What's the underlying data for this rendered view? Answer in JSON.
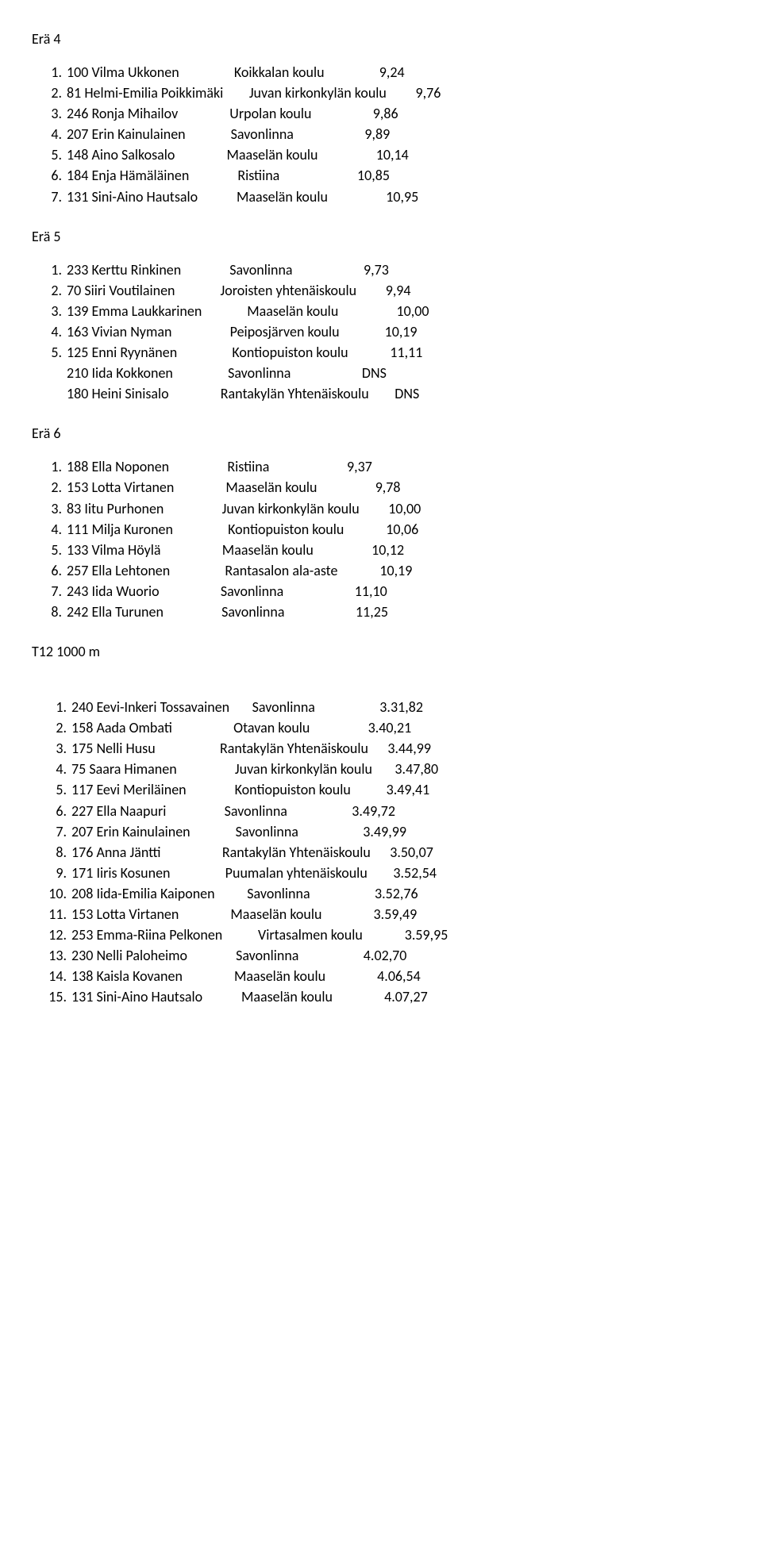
{
  "heats": [
    {
      "title": "Erä 4",
      "rows": [
        {
          "rank": "1.",
          "bib": "100",
          "name": "Vilma Ukkonen",
          "school": "Koikkalan koulu",
          "result": "9,24"
        },
        {
          "rank": "2.",
          "bib": "81",
          "name": "Helmi-Emilia Poikkimäki",
          "school": "Juvan kirkonkylän koulu",
          "result": "9,76"
        },
        {
          "rank": "3.",
          "bib": "246",
          "name": "Ronja Mihailov",
          "school": "Urpolan koulu",
          "result": "9,86"
        },
        {
          "rank": "4.",
          "bib": "207",
          "name": "Erin Kainulainen",
          "school": "Savonlinna",
          "result": "9,89"
        },
        {
          "rank": "5.",
          "bib": "148",
          "name": "Aino Salkosalo",
          "school": "Maaselän koulu",
          "result": "10,14"
        },
        {
          "rank": "6.",
          "bib": "184",
          "name": "Enja Hämäläinen",
          "school": "Ristiina",
          "result": "10,85"
        },
        {
          "rank": "7.",
          "bib": "131",
          "name": "Sini-Aino Hautsalo",
          "school": "Maaselän koulu",
          "result": "10,95"
        }
      ]
    },
    {
      "title": "Erä 5",
      "rows": [
        {
          "rank": "1.",
          "bib": "233",
          "name": "Kerttu Rinkinen",
          "school": "Savonlinna",
          "result": "9,73"
        },
        {
          "rank": "2.",
          "bib": "70",
          "name": "Siiri Voutilainen",
          "school": "Joroisten yhtenäiskoulu",
          "result": "9,94"
        },
        {
          "rank": "3.",
          "bib": "139",
          "name": "Emma Laukkarinen",
          "school": "Maaselän koulu",
          "result": "10,00"
        },
        {
          "rank": "4.",
          "bib": "163",
          "name": "Vivian Nyman",
          "school": "Peiposjärven koulu",
          "result": "10,19"
        },
        {
          "rank": "5.",
          "bib": "125",
          "name": "Enni Ryynänen",
          "school": "Kontiopuiston koulu",
          "result": "11,11"
        },
        {
          "rank": "",
          "bib": "210",
          "name": "Iida Kokkonen",
          "school": "Savonlinna",
          "result": "DNS"
        },
        {
          "rank": "",
          "bib": "180",
          "name": "Heini Sinisalo",
          "school": "Rantakylän Yhtenäiskoulu",
          "result": "DNS"
        }
      ]
    },
    {
      "title": "Erä 6",
      "rows": [
        {
          "rank": "1.",
          "bib": "188",
          "name": "Ella Noponen",
          "school": "Ristiina",
          "result": "9,37"
        },
        {
          "rank": "2.",
          "bib": "153",
          "name": "Lotta Virtanen",
          "school": "Maaselän koulu",
          "result": "9,78"
        },
        {
          "rank": "3.",
          "bib": "83",
          "name": "Iitu Purhonen",
          "school": "Juvan kirkonkylän koulu",
          "result": "10,00"
        },
        {
          "rank": "4.",
          "bib": "111",
          "name": "Milja Kuronen",
          "school": "Kontiopuiston koulu",
          "result": "10,06"
        },
        {
          "rank": "5.",
          "bib": "133",
          "name": "Vilma Höylä",
          "school": "Maaselän koulu",
          "result": "10,12"
        },
        {
          "rank": "6.",
          "bib": "257",
          "name": "Ella Lehtonen",
          "school": "Rantasalon ala-aste",
          "result": "10,19"
        },
        {
          "rank": "7.",
          "bib": "243",
          "name": "Iida Wuorio",
          "school": "Savonlinna",
          "result": "11,10"
        },
        {
          "rank": "8.",
          "bib": "242",
          "name": "Ella Turunen",
          "school": "Savonlinna",
          "result": "11,25"
        }
      ]
    }
  ],
  "event2": {
    "title": "T12 1000 m",
    "rows": [
      {
        "rank": "1.",
        "bib": "240",
        "name": "Eevi-Inkeri Tossavainen",
        "school": "Savonlinna",
        "result": "3.31,82"
      },
      {
        "rank": "2.",
        "bib": "158",
        "name": "Aada Ombati",
        "school": "Otavan koulu",
        "result": "3.40,21"
      },
      {
        "rank": "3.",
        "bib": "175",
        "name": "Nelli Husu",
        "school": "Rantakylän Yhtenäiskoulu",
        "result": "3.44,99"
      },
      {
        "rank": "4.",
        "bib": "75",
        "name": "Saara Himanen",
        "school": "Juvan kirkonkylän koulu",
        "result": "3.47,80"
      },
      {
        "rank": "5.",
        "bib": "117",
        "name": "Eevi Meriläinen",
        "school": "Kontiopuiston koulu",
        "result": "3.49,41"
      },
      {
        "rank": "6.",
        "bib": "227",
        "name": "Ella Naapuri",
        "school": "Savonlinna",
        "result": "3.49,72"
      },
      {
        "rank": "7.",
        "bib": "207",
        "name": "Erin Kainulainen",
        "school": "Savonlinna",
        "result": "3.49,99"
      },
      {
        "rank": "8.",
        "bib": "176",
        "name": "Anna Jäntti",
        "school": "Rantakylän Yhtenäiskoulu",
        "result": "3.50,07"
      },
      {
        "rank": "9.",
        "bib": "171",
        "name": "Iiris Kosunen",
        "school": "Puumalan yhtenäiskoulu",
        "result": "3.52,54"
      },
      {
        "rank": "10.",
        "bib": "208",
        "name": "Iida-Emilia Kaiponen",
        "school": "Savonlinna",
        "result": "3.52,76"
      },
      {
        "rank": "11.",
        "bib": "153",
        "name": "Lotta Virtanen",
        "school": "Maaselän koulu",
        "result": "3.59,49"
      },
      {
        "rank": "12.",
        "bib": "253",
        "name": "Emma-Riina Pelkonen",
        "school": "Virtasalmen koulu",
        "result": "3.59,95"
      },
      {
        "rank": "13.",
        "bib": "230",
        "name": "Nelli Paloheimo",
        "school": "Savonlinna",
        "result": "4.02,70"
      },
      {
        "rank": "14.",
        "bib": "138",
        "name": "Kaisla Kovanen",
        "school": "Maaselän koulu",
        "result": "4.06,54"
      },
      {
        "rank": "15.",
        "bib": "131",
        "name": "Sini-Aino Hautsalo",
        "school": "Maaselän koulu",
        "result": "4.07,27"
      }
    ]
  }
}
